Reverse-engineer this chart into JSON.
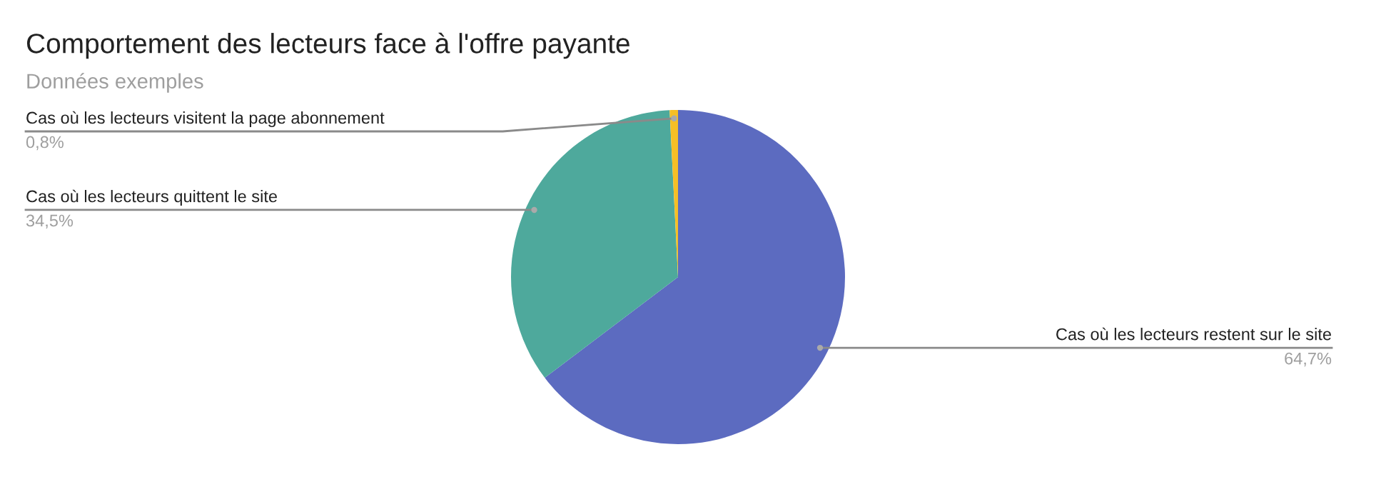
{
  "chart_data": {
    "type": "pie",
    "title": "Comportement des lecteurs face à l'offre payante",
    "subtitle": "Données exemples",
    "categories": [
      "Cas où les lecteurs restent sur le site",
      "Cas où les lecteurs quittent le site",
      "Cas où les lecteurs visitent la page abonnement"
    ],
    "values": [
      64.7,
      34.5,
      0.8
    ],
    "value_labels": [
      "64,7%",
      "34,5%",
      "0,8%"
    ],
    "colors": [
      "#5c6bc0",
      "#4ea99c",
      "#f6bf26"
    ],
    "legend": false
  }
}
